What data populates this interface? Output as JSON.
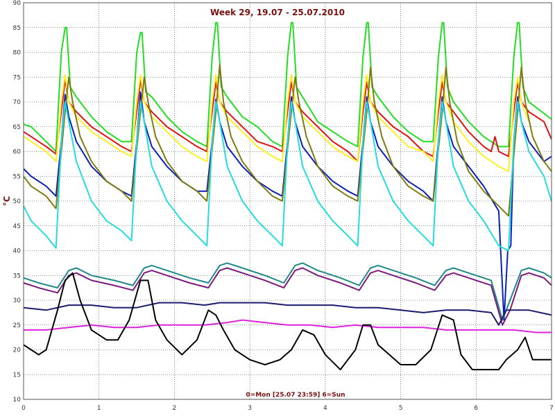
{
  "chart_data": {
    "type": "line",
    "title": "Week 29, 19.07 - 25.07.2010",
    "xlabel": "0=Mon [25.07 23:59] 6=Sun",
    "ylabel": "°C",
    "xlim": [
      0,
      7
    ],
    "ylim": [
      10,
      90
    ],
    "xticks": [
      0,
      1,
      2,
      3,
      4,
      5,
      6,
      7
    ],
    "yticks": [
      10,
      15,
      20,
      25,
      30,
      35,
      40,
      45,
      50,
      55,
      60,
      65,
      70,
      75,
      80,
      85,
      90
    ],
    "grid": true,
    "series": [
      {
        "color": "#22dd22",
        "x": [
          0,
          0.1,
          0.3,
          0.43,
          0.5,
          0.55,
          0.57,
          0.62,
          0.7,
          0.9,
          1.1,
          1.3,
          1.43,
          1.5,
          1.55,
          1.57,
          1.62,
          1.7,
          1.9,
          2.1,
          2.3,
          2.43,
          2.5,
          2.55,
          2.57,
          2.62,
          2.7,
          2.9,
          3.1,
          3.3,
          3.43,
          3.5,
          3.55,
          3.57,
          3.62,
          3.7,
          3.9,
          4.1,
          4.3,
          4.43,
          4.5,
          4.55,
          4.57,
          4.62,
          4.7,
          4.9,
          5.1,
          5.3,
          5.43,
          5.5,
          5.55,
          5.57,
          5.62,
          5.7,
          5.9,
          6.1,
          6.3,
          6.43,
          6.5,
          6.55,
          6.57,
          6.62,
          6.7,
          7
        ],
        "y": [
          65.5,
          65,
          62,
          60,
          80,
          85,
          85,
          73,
          71,
          67,
          64,
          62,
          62,
          80,
          84,
          84,
          72,
          71,
          67,
          64,
          62,
          61,
          79,
          86,
          86,
          73,
          71,
          67,
          65,
          62,
          61,
          79,
          86,
          86,
          73,
          71,
          66,
          64,
          62,
          61,
          79,
          86,
          86,
          73,
          71,
          67,
          64,
          62,
          62,
          79,
          86,
          86,
          73,
          70,
          66,
          63,
          61,
          61,
          79,
          86,
          86,
          73,
          70,
          66.5
        ]
      },
      {
        "color": "#dd1111",
        "x": [
          0,
          0.1,
          0.3,
          0.43,
          0.5,
          0.55,
          0.6,
          0.7,
          0.9,
          1.1,
          1.3,
          1.43,
          1.5,
          1.55,
          1.6,
          1.7,
          1.9,
          2.1,
          2.3,
          2.43,
          2.5,
          2.55,
          2.6,
          2.7,
          2.9,
          3.1,
          3.3,
          3.43,
          3.5,
          3.55,
          3.6,
          3.7,
          3.9,
          4.1,
          4.3,
          4.43,
          4.5,
          4.55,
          4.6,
          4.7,
          4.9,
          5.1,
          5.3,
          5.43,
          5.5,
          5.55,
          5.6,
          5.7,
          5.9,
          6.1,
          6.2,
          6.25,
          6.3,
          6.43,
          6.5,
          6.55,
          6.6,
          6.7,
          6.9,
          7
        ],
        "y": [
          64,
          63,
          61,
          59.5,
          68,
          74.5,
          70,
          68,
          65,
          63,
          61,
          60,
          68,
          74.5,
          70,
          68,
          65,
          63,
          61,
          60,
          68,
          74,
          70,
          68,
          65,
          62,
          61,
          60,
          68,
          74,
          70,
          68,
          65,
          62,
          60,
          58,
          68,
          74,
          70,
          68,
          65,
          63,
          60,
          59,
          68,
          74,
          70,
          68,
          64,
          61,
          60,
          63,
          60,
          59,
          68,
          74,
          70,
          68,
          66,
          62.5
        ]
      },
      {
        "color": "#ffee22",
        "x": [
          0,
          0.1,
          0.3,
          0.43,
          0.5,
          0.55,
          0.6,
          0.7,
          0.9,
          1.1,
          1.3,
          1.43,
          1.5,
          1.55,
          1.6,
          1.7,
          1.9,
          2.1,
          2.3,
          2.43,
          2.5,
          2.55,
          2.6,
          2.7,
          2.9,
          3.1,
          3.3,
          3.43,
          3.5,
          3.55,
          3.6,
          3.7,
          3.9,
          4.1,
          4.3,
          4.43,
          4.5,
          4.55,
          4.6,
          4.7,
          4.9,
          5.1,
          5.3,
          5.43,
          5.5,
          5.55,
          5.6,
          5.7,
          5.9,
          6.1,
          6.3,
          6.43,
          6.5,
          6.55,
          6.6,
          6.7
        ],
        "y": [
          63,
          62,
          60,
          58,
          70,
          75.5,
          70,
          67,
          64,
          62,
          60,
          59,
          70,
          75.5,
          70,
          67,
          64,
          61,
          59,
          58,
          70,
          75.5,
          70,
          67,
          64,
          61,
          59,
          58,
          70,
          75.5,
          70,
          67,
          64,
          61,
          59,
          58,
          70,
          75.5,
          70,
          67,
          64,
          61,
          60,
          58,
          70,
          75.5,
          70,
          66,
          62,
          59,
          57,
          56,
          70,
          75,
          70,
          66
        ]
      },
      {
        "color": "#0a1fbb",
        "x": [
          0,
          0.1,
          0.3,
          0.43,
          0.5,
          0.55,
          0.6,
          0.7,
          0.9,
          1.1,
          1.3,
          1.43,
          1.5,
          1.55,
          1.6,
          1.7,
          1.9,
          2.1,
          2.3,
          2.43,
          2.5,
          2.55,
          2.6,
          2.7,
          2.9,
          3.1,
          3.3,
          3.43,
          3.5,
          3.55,
          3.6,
          3.7,
          3.9,
          4.1,
          4.3,
          4.43,
          4.5,
          4.55,
          4.6,
          4.7,
          4.9,
          5.1,
          5.3,
          5.43,
          5.5,
          5.55,
          5.6,
          5.7,
          5.9,
          6.1,
          6.3,
          6.37,
          6.42,
          6.46,
          6.5,
          6.55,
          6.6,
          6.7,
          6.9,
          7
        ],
        "y": [
          56.5,
          55,
          53,
          51,
          62,
          71.5,
          67,
          62,
          57,
          54,
          52,
          51,
          62,
          72,
          66,
          61,
          57,
          54,
          52,
          52,
          62,
          70.5,
          66,
          61,
          57,
          54,
          52,
          51,
          62,
          71,
          66,
          61,
          57,
          54,
          52,
          51,
          62,
          71,
          66,
          61,
          57,
          54,
          52,
          50,
          62,
          71,
          66,
          61,
          57,
          53,
          48,
          26,
          40,
          41,
          62,
          71,
          66,
          62,
          58,
          59
        ]
      },
      {
        "color": "#7e7a10",
        "x": [
          0,
          0.1,
          0.3,
          0.43,
          0.55,
          0.6,
          0.65,
          0.75,
          0.9,
          1.1,
          1.3,
          1.43,
          1.55,
          1.6,
          1.65,
          1.75,
          1.9,
          2.1,
          2.3,
          2.43,
          2.55,
          2.6,
          2.65,
          2.75,
          2.9,
          3.1,
          3.3,
          3.43,
          3.55,
          3.6,
          3.65,
          3.75,
          3.9,
          4.1,
          4.3,
          4.43,
          4.55,
          4.6,
          4.65,
          4.75,
          4.9,
          5.1,
          5.3,
          5.43,
          5.55,
          5.6,
          5.65,
          5.75,
          5.9,
          6.1,
          6.3,
          6.43,
          6.55,
          6.6,
          6.65,
          6.75,
          6.9,
          7
        ],
        "y": [
          55,
          53,
          51,
          48.5,
          68,
          75,
          70,
          63,
          58,
          54,
          52,
          50,
          68,
          75,
          70,
          63,
          58,
          54,
          52,
          50,
          68,
          77.5,
          70,
          63,
          58,
          54,
          51,
          50,
          68,
          75,
          70,
          63,
          57,
          53,
          51,
          50,
          68,
          77,
          70,
          63,
          57,
          53,
          51,
          50,
          68,
          77,
          70,
          62,
          56,
          52,
          49,
          47,
          68,
          77,
          70,
          63,
          58,
          56
        ]
      },
      {
        "color": "#22dddd",
        "x": [
          0,
          0.1,
          0.3,
          0.43,
          0.5,
          0.55,
          0.6,
          0.7,
          0.9,
          1.1,
          1.3,
          1.43,
          1.5,
          1.55,
          1.6,
          1.7,
          1.9,
          2.1,
          2.3,
          2.43,
          2.5,
          2.55,
          2.6,
          2.7,
          2.9,
          3.1,
          3.3,
          3.43,
          3.5,
          3.55,
          3.6,
          3.7,
          3.9,
          4.1,
          4.3,
          4.43,
          4.5,
          4.55,
          4.6,
          4.7,
          4.9,
          5.1,
          5.3,
          5.43,
          5.5,
          5.55,
          5.6,
          5.7,
          5.9,
          6.1,
          6.3,
          6.43,
          6.5,
          6.55,
          6.6,
          6.7,
          6.9,
          7
        ],
        "y": [
          49,
          46,
          43,
          40.5,
          62,
          70,
          66,
          58,
          50,
          46,
          44,
          42,
          62,
          70,
          66,
          57,
          50,
          46,
          43,
          41,
          62,
          70,
          66,
          57,
          50,
          46,
          43,
          41,
          62,
          70,
          66,
          57,
          50,
          46,
          43,
          41,
          62,
          70,
          66,
          57,
          50,
          46,
          43,
          41,
          62,
          70,
          66,
          57,
          50,
          46,
          41,
          40,
          62,
          70,
          66,
          60,
          55,
          50
        ]
      },
      {
        "color": "#208888",
        "x": [
          0,
          0.2,
          0.45,
          0.6,
          0.7,
          0.9,
          1.2,
          1.45,
          1.6,
          1.7,
          1.9,
          2.2,
          2.45,
          2.6,
          2.7,
          2.9,
          3.2,
          3.45,
          3.6,
          3.7,
          3.9,
          4.2,
          4.45,
          4.6,
          4.7,
          4.9,
          5.2,
          5.45,
          5.6,
          5.7,
          5.9,
          6.2,
          6.35,
          6.45,
          6.6,
          6.7,
          6.9,
          7
        ],
        "y": [
          34.5,
          33.5,
          32.5,
          36,
          36.5,
          35,
          34,
          33,
          36.5,
          37,
          36,
          34.5,
          33.5,
          37,
          37.5,
          36.5,
          35,
          33.5,
          37,
          37.5,
          36,
          34.5,
          33,
          36.5,
          37,
          36,
          34.5,
          33,
          36,
          36.5,
          35.5,
          34,
          26,
          30,
          36,
          36.5,
          35.5,
          34.5
        ]
      },
      {
        "color": "#7a1a7a",
        "x": [
          0,
          0.2,
          0.45,
          0.6,
          0.7,
          0.9,
          1.2,
          1.45,
          1.6,
          1.7,
          1.9,
          2.2,
          2.45,
          2.6,
          2.7,
          2.9,
          3.2,
          3.45,
          3.6,
          3.7,
          3.9,
          4.2,
          4.45,
          4.6,
          4.7,
          4.9,
          5.2,
          5.45,
          5.6,
          5.7,
          5.9,
          6.2,
          6.35,
          6.45,
          6.6,
          6.7,
          6.9,
          7
        ],
        "y": [
          33.5,
          32.5,
          31.5,
          35,
          35.5,
          34,
          33,
          32,
          35.5,
          36,
          35,
          33.5,
          32.5,
          36,
          36.5,
          35.5,
          34,
          32.5,
          36,
          36.5,
          35,
          33.5,
          32,
          35.5,
          36,
          35,
          33.5,
          32,
          35,
          35.5,
          34.5,
          33,
          25,
          28,
          35,
          35.5,
          34.5,
          33
        ]
      },
      {
        "color": "#1a1a6e",
        "x": [
          0,
          0.3,
          0.6,
          0.9,
          1.2,
          1.5,
          1.8,
          2.1,
          2.4,
          2.6,
          2.9,
          3.2,
          3.5,
          3.8,
          4.1,
          4.4,
          4.7,
          5.0,
          5.3,
          5.6,
          5.9,
          6.2,
          6.3,
          6.4,
          6.7,
          7
        ],
        "y": [
          28.5,
          28,
          29,
          29,
          28.5,
          28.5,
          29.5,
          29.5,
          29,
          29.5,
          29.5,
          29.5,
          29,
          29,
          29,
          28.5,
          28.5,
          28,
          27.5,
          28,
          28,
          27.5,
          25,
          28,
          28,
          27
        ]
      },
      {
        "color": "#dd22dd",
        "x": [
          0,
          0.3,
          0.6,
          0.9,
          1.2,
          1.5,
          1.8,
          2.1,
          2.4,
          2.7,
          2.9,
          3.2,
          3.5,
          3.8,
          4.1,
          4.4,
          4.7,
          5.0,
          5.3,
          5.6,
          5.9,
          6.2,
          6.5,
          6.8,
          7
        ],
        "y": [
          24,
          24,
          24.5,
          25,
          24.5,
          24.5,
          25,
          25,
          25,
          25.5,
          26,
          25.5,
          25,
          25,
          24.5,
          25,
          24.5,
          24.5,
          24.5,
          24,
          24,
          24,
          24,
          23.5,
          23.5
        ]
      },
      {
        "color": "#000000",
        "x": [
          0,
          0.1,
          0.2,
          0.3,
          0.45,
          0.55,
          0.65,
          0.75,
          0.9,
          1.1,
          1.25,
          1.4,
          1.55,
          1.65,
          1.75,
          1.9,
          2.1,
          2.3,
          2.45,
          2.55,
          2.65,
          2.8,
          3.0,
          3.2,
          3.4,
          3.55,
          3.7,
          3.85,
          4.0,
          4.2,
          4.4,
          4.5,
          4.6,
          4.7,
          4.85,
          5.0,
          5.2,
          5.4,
          5.55,
          5.7,
          5.8,
          5.95,
          6.1,
          6.3,
          6.4,
          6.55,
          6.65,
          6.75,
          6.9,
          7
        ],
        "y": [
          21,
          20,
          19,
          20,
          28,
          34,
          35.5,
          30,
          24,
          22,
          22,
          26,
          34,
          34,
          26,
          22,
          19,
          22,
          28,
          27,
          24,
          20,
          18,
          17,
          18,
          20,
          24,
          23,
          19,
          16,
          20,
          25,
          25,
          21,
          19,
          17,
          17,
          20,
          27,
          26,
          19,
          16,
          16,
          16,
          18,
          20,
          22.5,
          18,
          18,
          18
        ]
      }
    ]
  }
}
